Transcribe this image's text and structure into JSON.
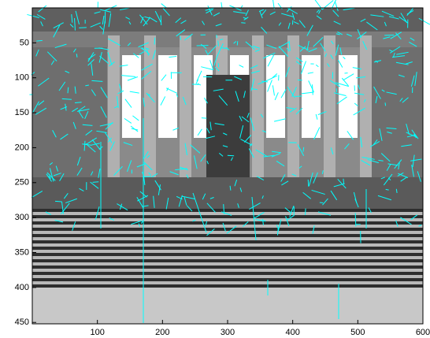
{
  "chart_data": {
    "type": "image",
    "xlim": [
      0,
      600
    ],
    "ylim": [
      0,
      452
    ],
    "y_reversed": true,
    "xticks": [
      100,
      200,
      300,
      400,
      500,
      600
    ],
    "yticks": [
      50,
      100,
      150,
      200,
      250,
      300,
      350,
      400,
      450
    ],
    "color": "#00ffff"
  }
}
